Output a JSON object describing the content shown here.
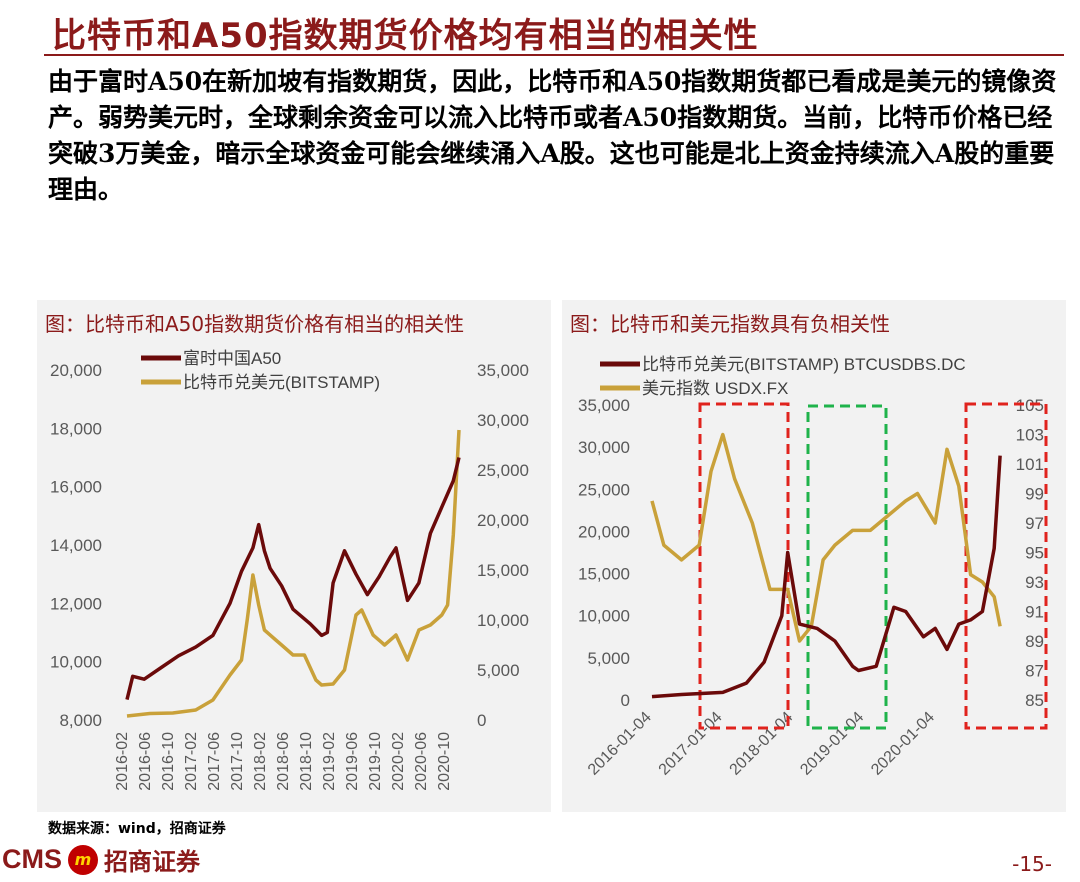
{
  "page": {
    "title": "比特币和A50指数期货价格均有相当的相关性",
    "paragraph": "由于富时A50在新加坡有指数期货，因此，比特币和A50指数期货都已看成是美元的镜像资产。弱势美元时，全球剩余资金可以流入比特币或者A50指数期货。当前，比特币价格已经突破3万美金，暗示全球资金可能会继续涌入A股。这也可能是北上资金持续流入A股的重要理由。",
    "source": "数据来源：wind，招商证券",
    "logo_text": "CMS",
    "logo_cn": "招商证券",
    "page_number": "-15-"
  },
  "colors": {
    "series_dark": "#6b0a0a",
    "series_gold": "#c9a13a",
    "red_box": "#e0231d",
    "green_box": "#1fb34b",
    "brand": "#8b1a1a"
  },
  "chart_data": [
    {
      "type": "line",
      "title": "图：比特币和A50指数期货价格有相当的相关性",
      "x_tick_labels": [
        "2016-02",
        "2016-06",
        "2016-10",
        "2017-02",
        "2017-06",
        "2017-10",
        "2018-02",
        "2018-06",
        "2018-10",
        "2019-02",
        "2019-06",
        "2019-10",
        "2020-02",
        "2020-06",
        "2020-10"
      ],
      "x_range": [
        "2016-02",
        "2020-12"
      ],
      "left_axis": {
        "ticks": [
          "8,000",
          "10,000",
          "12,000",
          "14,000",
          "16,000",
          "18,000",
          "20,000"
        ],
        "ylim": [
          8000,
          20000
        ]
      },
      "right_axis": {
        "ticks": [
          "0",
          "5,000",
          "10,000",
          "15,000",
          "20,000",
          "25,000",
          "30,000",
          "35,000"
        ],
        "ylim": [
          0,
          35000
        ]
      },
      "series": [
        {
          "name": "富时中国A50",
          "axis": "left",
          "color": "#6b0a0a",
          "x": [
            "2016-02",
            "2016-03",
            "2016-05",
            "2016-08",
            "2016-11",
            "2017-02",
            "2017-05",
            "2017-08",
            "2017-10",
            "2017-12",
            "2018-01",
            "2018-02",
            "2018-03",
            "2018-05",
            "2018-07",
            "2018-10",
            "2018-12",
            "2019-01",
            "2019-02",
            "2019-04",
            "2019-06",
            "2019-08",
            "2019-10",
            "2019-12",
            "2020-01",
            "2020-03",
            "2020-05",
            "2020-07",
            "2020-09",
            "2020-11",
            "2020-12"
          ],
          "values": [
            8700,
            9500,
            9400,
            9800,
            10200,
            10500,
            10900,
            12000,
            13100,
            13900,
            14700,
            13800,
            13200,
            12600,
            11800,
            11300,
            10900,
            11000,
            12700,
            13800,
            13000,
            12300,
            12900,
            13600,
            13900,
            12100,
            12700,
            14400,
            15300,
            16200,
            17000
          ]
        },
        {
          "name": "比特币兑美元(BITSTAMP)",
          "axis": "right",
          "color": "#c9a13a",
          "x": [
            "2016-02",
            "2016-06",
            "2016-10",
            "2017-02",
            "2017-05",
            "2017-08",
            "2017-10",
            "2017-11",
            "2017-12",
            "2018-01",
            "2018-02",
            "2018-04",
            "2018-05",
            "2018-07",
            "2018-09",
            "2018-11",
            "2018-12",
            "2019-02",
            "2019-04",
            "2019-06",
            "2019-07",
            "2019-09",
            "2019-11",
            "2020-01",
            "2020-03",
            "2020-05",
            "2020-07",
            "2020-09",
            "2020-10",
            "2020-11",
            "2020-12"
          ],
          "values": [
            400,
            650,
            700,
            1000,
            2000,
            4500,
            6000,
            10000,
            14500,
            11500,
            9000,
            8000,
            7500,
            6500,
            6500,
            4000,
            3500,
            3600,
            5000,
            10500,
            11000,
            8500,
            7500,
            8500,
            6000,
            9000,
            9500,
            10500,
            11500,
            18500,
            29000
          ]
        }
      ]
    },
    {
      "type": "line",
      "title": "图：比特币和美元指数具有负相关性",
      "x_tick_labels": [
        "2016-01-04",
        "2017-01-04",
        "2018-01-04",
        "2019-01-04",
        "2020-01-04"
      ],
      "x_range": [
        "2016-01-04",
        "2021-01-04"
      ],
      "left_axis": {
        "ticks": [
          "0",
          "5,000",
          "10,000",
          "15,000",
          "20,000",
          "25,000",
          "30,000",
          "35,000"
        ],
        "ylim": [
          0,
          35000
        ]
      },
      "right_axis": {
        "ticks": [
          "85",
          "87",
          "89",
          "91",
          "93",
          "95",
          "97",
          "99",
          "101",
          "103",
          "105"
        ],
        "ylim": [
          85,
          105
        ]
      },
      "series": [
        {
          "name": "比特币兑美元(BITSTAMP) BTCUSDBS.DC",
          "axis": "left",
          "color": "#6b0a0a",
          "x": [
            "2016-01",
            "2016-06",
            "2017-01",
            "2017-05",
            "2017-08",
            "2017-11",
            "2017-12",
            "2018-02",
            "2018-05",
            "2018-08",
            "2018-11",
            "2018-12",
            "2019-03",
            "2019-06",
            "2019-08",
            "2019-11",
            "2020-01",
            "2020-03",
            "2020-05",
            "2020-07",
            "2020-09",
            "2020-11",
            "2020-12"
          ],
          "values": [
            400,
            650,
            900,
            2000,
            4500,
            10000,
            17500,
            9000,
            8500,
            7000,
            4000,
            3500,
            4000,
            11000,
            10500,
            7500,
            8500,
            6000,
            9000,
            9500,
            10500,
            18000,
            29000
          ]
        },
        {
          "name": "美元指数 USDX.FX",
          "axis": "right",
          "color": "#c9a13a",
          "x": [
            "2016-01",
            "2016-03",
            "2016-06",
            "2016-09",
            "2016-11",
            "2017-01",
            "2017-03",
            "2017-06",
            "2017-09",
            "2017-12",
            "2018-02",
            "2018-04",
            "2018-06",
            "2018-08",
            "2018-11",
            "2019-02",
            "2019-05",
            "2019-08",
            "2019-10",
            "2020-01",
            "2020-03",
            "2020-05",
            "2020-07",
            "2020-09",
            "2020-11",
            "2020-12"
          ],
          "values": [
            98.5,
            95.5,
            94.5,
            95.5,
            100.5,
            103,
            100,
            97,
            92.5,
            92.5,
            89,
            90,
            94.5,
            95.5,
            96.5,
            96.5,
            97.5,
            98.5,
            99,
            97,
            102,
            99.5,
            93.5,
            93,
            92,
            90
          ]
        }
      ]
    }
  ]
}
